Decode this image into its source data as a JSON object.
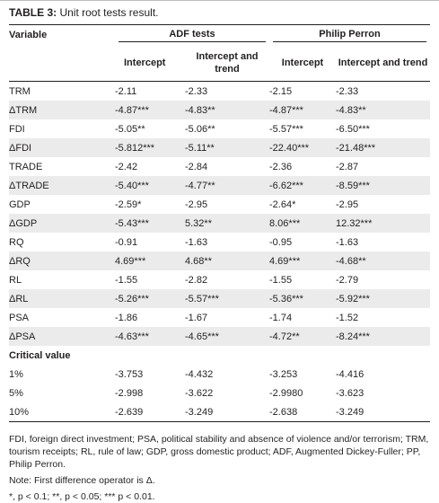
{
  "caption": {
    "label": "TABLE 3:",
    "text": " Unit root tests result."
  },
  "header": {
    "variable": "Variable",
    "groups": [
      "ADF tests",
      "Philip Perron"
    ],
    "subcols": [
      "Intercept",
      "Intercept and trend",
      "Intercept",
      "Intercept and trend"
    ]
  },
  "rows": [
    {
      "name": "TRM",
      "vals": [
        "-2.11",
        "-2.33",
        "-2.15",
        "-2.33"
      ]
    },
    {
      "name": "ΔTRM",
      "vals": [
        "-4.87***",
        "-4.83**",
        "-4.87***",
        "-4.83**"
      ]
    },
    {
      "name": "FDI",
      "vals": [
        "-5.05**",
        "-5.06**",
        "-5.57***",
        "-6.50***"
      ]
    },
    {
      "name": "ΔFDI",
      "vals": [
        "-5.812***",
        "-5.11**",
        "-22.40***",
        "-21.48***"
      ]
    },
    {
      "name": "TRADE",
      "vals": [
        "-2.42",
        "-2.84",
        "-2.36",
        "-2.87"
      ]
    },
    {
      "name": "ΔTRADE",
      "vals": [
        "-5.40***",
        "-4.77**",
        "-6.62***",
        "-8.59***"
      ]
    },
    {
      "name": "GDP",
      "vals": [
        "-2.59*",
        "-2.95",
        "-2.64*",
        "-2.95"
      ]
    },
    {
      "name": "ΔGDP",
      "vals": [
        "-5.43***",
        "5.32**",
        "8.06***",
        "12.32***"
      ]
    },
    {
      "name": "RQ",
      "vals": [
        "-0.91",
        "-1.63",
        "-0.95",
        "-1.63"
      ]
    },
    {
      "name": "ΔRQ",
      "vals": [
        "4.69***",
        "4.68**",
        "4.69***",
        "-4.68**"
      ]
    },
    {
      "name": "RL",
      "vals": [
        "-1.55",
        "-2.82",
        "-1.55",
        "-2.79"
      ]
    },
    {
      "name": "ΔRL",
      "vals": [
        "-5.26***",
        "-5.57***",
        "-5.36***",
        "-5.92***"
      ]
    },
    {
      "name": "PSA",
      "vals": [
        "-1.86",
        "-1.67",
        "-1.74",
        "-1.52"
      ]
    },
    {
      "name": "ΔPSA",
      "vals": [
        "-4.63***",
        "-4.65***",
        "-4.72**",
        "-8.24***"
      ]
    }
  ],
  "critical": {
    "label": "Critical value",
    "rows": [
      {
        "name": "1%",
        "vals": [
          "-3.753",
          "-4.432",
          "-3.253",
          "-4.416"
        ]
      },
      {
        "name": "5%",
        "vals": [
          "-2.998",
          "-3.622",
          "-2.9980",
          "-3.623"
        ]
      },
      {
        "name": "10%",
        "vals": [
          "-2.639",
          "-3.249",
          "-2.638",
          "-3.249"
        ]
      }
    ]
  },
  "notes": {
    "abbrev": "FDI, foreign direct investment; PSA, political stability and absence of violence and/or terrorism; TRM, tourism receipts; RL, rule of law; GDP, gross domestic product; ADF, Augmented Dickey-Fuller; PP, Philip Perron.",
    "note": "Note: First difference operator is Δ.",
    "sig": "*, p < 0.1; **, p < 0.05; *** p < 0.01."
  }
}
